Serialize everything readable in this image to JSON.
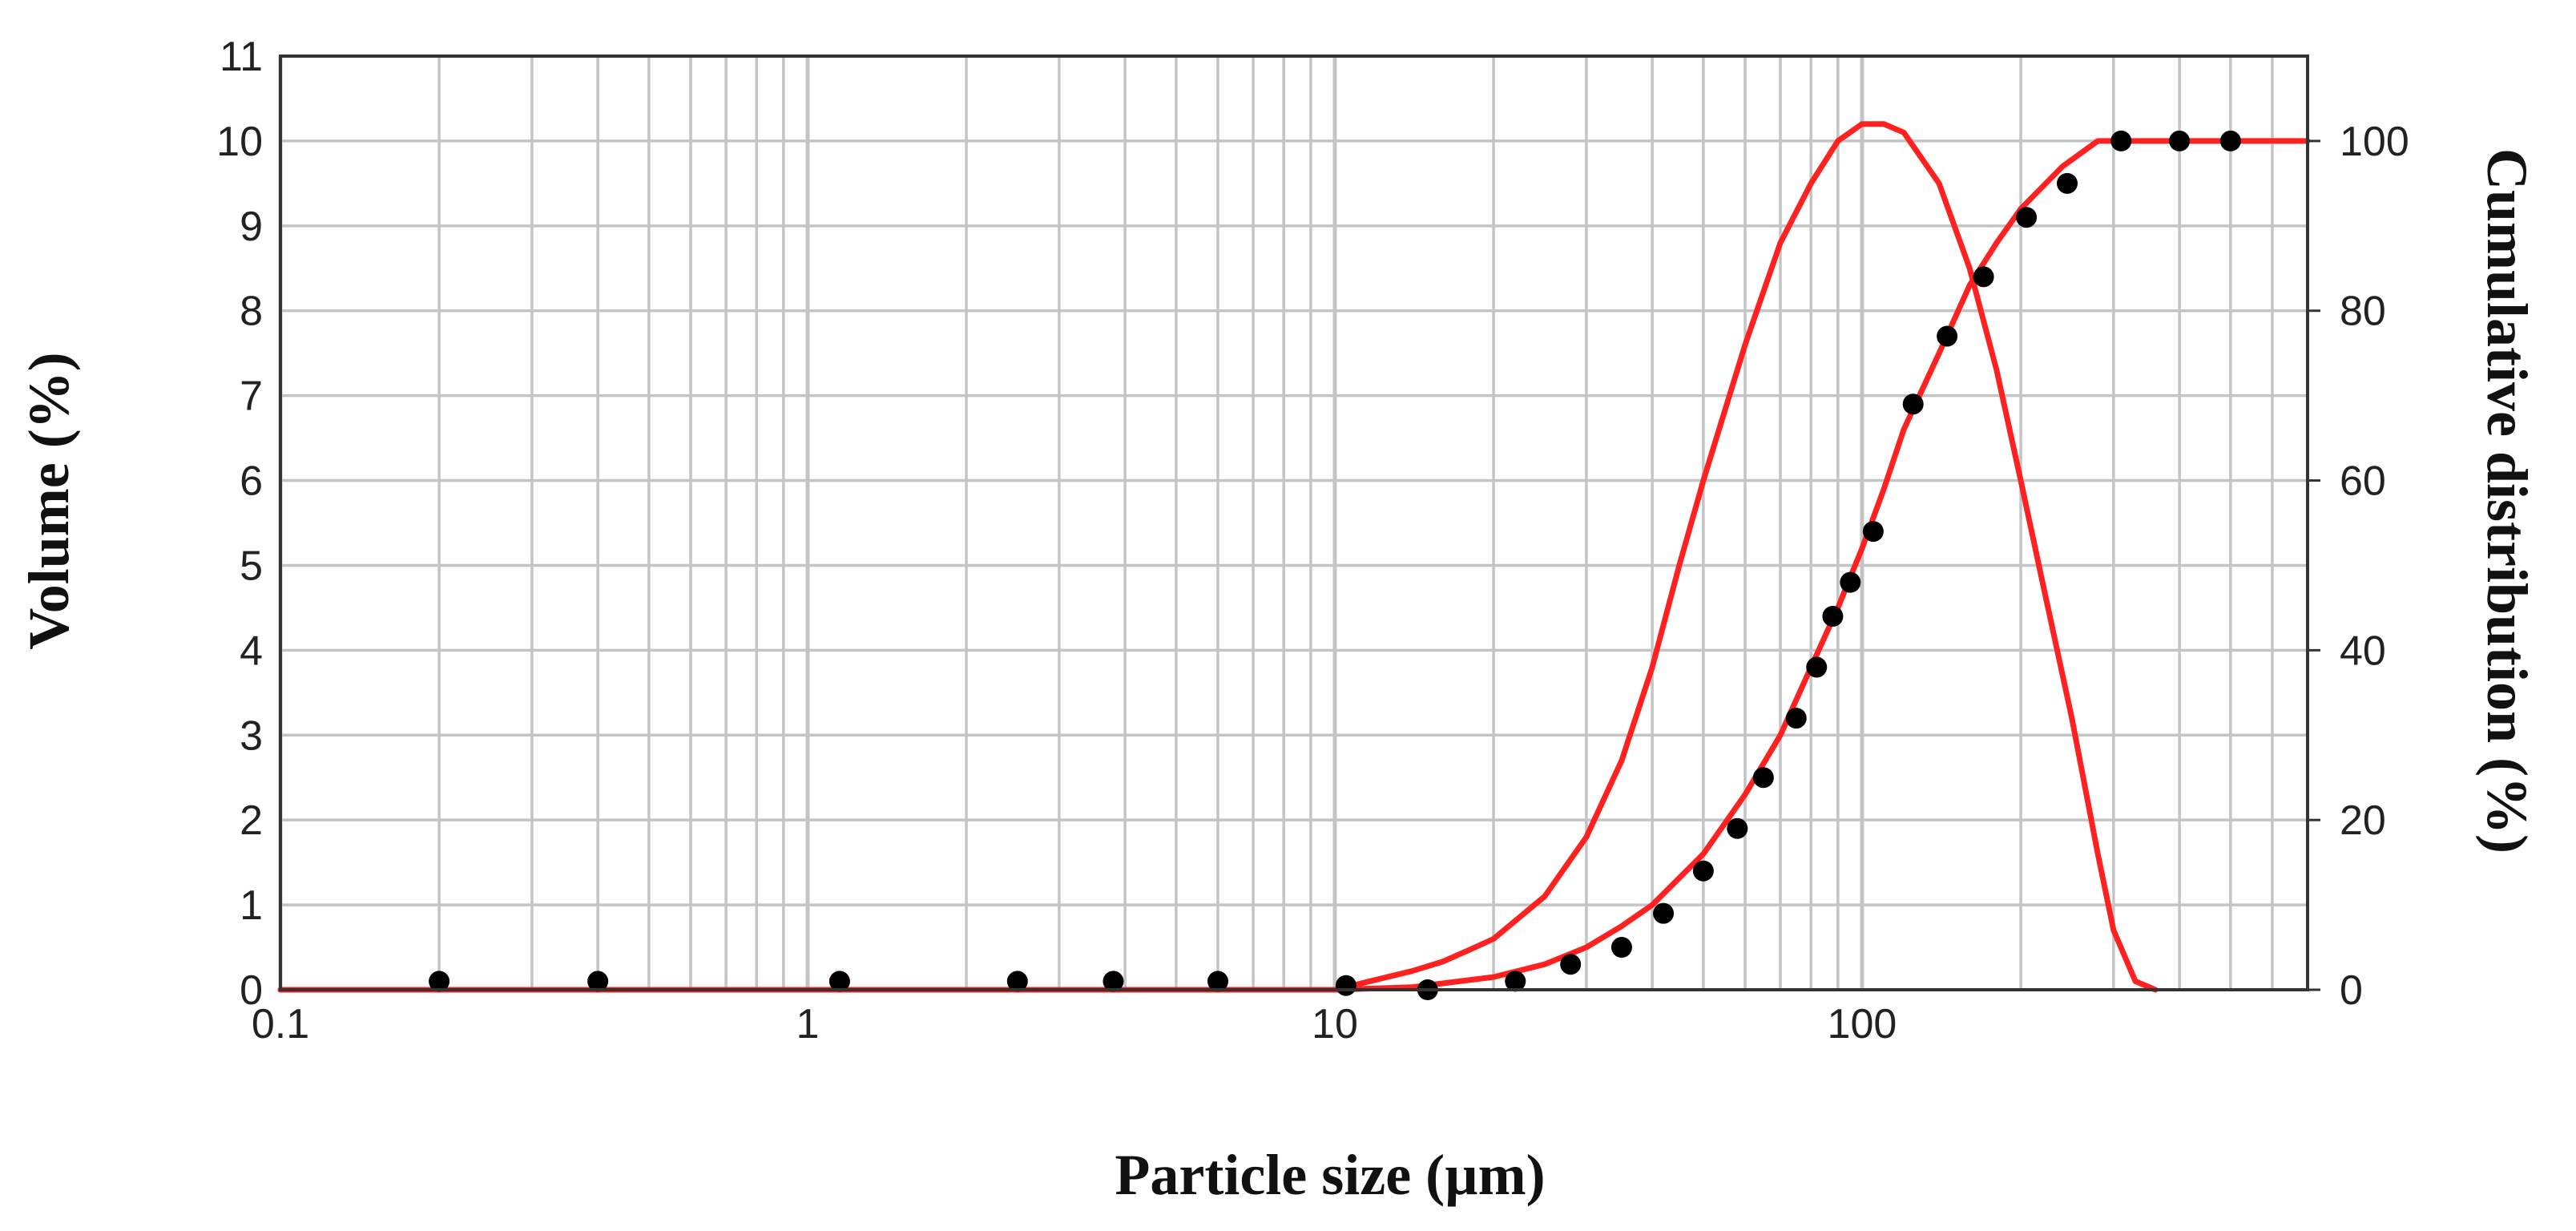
{
  "chart_data": {
    "type": "line",
    "xlabel": "Particle size (µm)",
    "ylabel": "Volume (%)",
    "y2label": "Cumulative distribution (%)",
    "x_scale": "log",
    "xlim": [
      0.1,
      700
    ],
    "ylim": [
      0,
      11
    ],
    "y2lim": [
      0,
      110
    ],
    "grid": true,
    "x_ticks": [
      "0.1",
      "1",
      "10",
      "100"
    ],
    "y_ticks": [
      "0",
      "1",
      "2",
      "3",
      "4",
      "5",
      "6",
      "7",
      "8",
      "9",
      "10",
      "11"
    ],
    "y2_ticks": [
      "0",
      "20",
      "40",
      "60",
      "80",
      "100"
    ],
    "colors": {
      "curve": "#ff2020",
      "marker": "#000000",
      "grid": "#c4c4c4"
    },
    "series": [
      {
        "axis": "left",
        "style": "line",
        "x": [
          0.1,
          1,
          10,
          12,
          14,
          16,
          18,
          20,
          25,
          30,
          35,
          40,
          45,
          50,
          60,
          70,
          80,
          90,
          100,
          110,
          120,
          140,
          160,
          180,
          200,
          220,
          250,
          280,
          300,
          330,
          360
        ],
        "y": [
          0,
          0,
          0,
          0.12,
          0.22,
          0.33,
          0.47,
          0.6,
          1.1,
          1.8,
          2.7,
          3.8,
          5.0,
          6.0,
          7.6,
          8.8,
          9.5,
          10.0,
          10.2,
          10.2,
          10.1,
          9.5,
          8.5,
          7.3,
          6.0,
          4.8,
          3.2,
          1.6,
          0.7,
          0.1,
          0
        ]
      },
      {
        "axis": "right",
        "style": "line",
        "x": [
          0.1,
          1,
          10,
          14,
          20,
          25,
          30,
          35,
          40,
          50,
          60,
          70,
          80,
          90,
          100,
          110,
          120,
          140,
          160,
          180,
          200,
          240,
          280,
          300,
          700
        ],
        "y": [
          0,
          0,
          0,
          0.3,
          1.5,
          3,
          5,
          7.5,
          10,
          16,
          23,
          30,
          38,
          45,
          52,
          59,
          66,
          75,
          83,
          88,
          92,
          97,
          100,
          100,
          100
        ]
      },
      {
        "axis": "right",
        "style": "markers",
        "x": [
          0.2,
          0.4,
          1.15,
          2.5,
          3.8,
          6,
          10.5,
          15,
          22,
          28,
          35,
          42,
          50,
          58,
          65,
          75,
          82,
          88,
          95,
          105,
          125,
          145,
          170,
          205,
          245,
          310,
          400,
          500
        ],
        "y": [
          1,
          1,
          1,
          1,
          1,
          1,
          0.5,
          0,
          1,
          3,
          5,
          9,
          14,
          19,
          25,
          32,
          38,
          44,
          48,
          54,
          69,
          77,
          84,
          91,
          95,
          100,
          100,
          100
        ]
      }
    ]
  }
}
